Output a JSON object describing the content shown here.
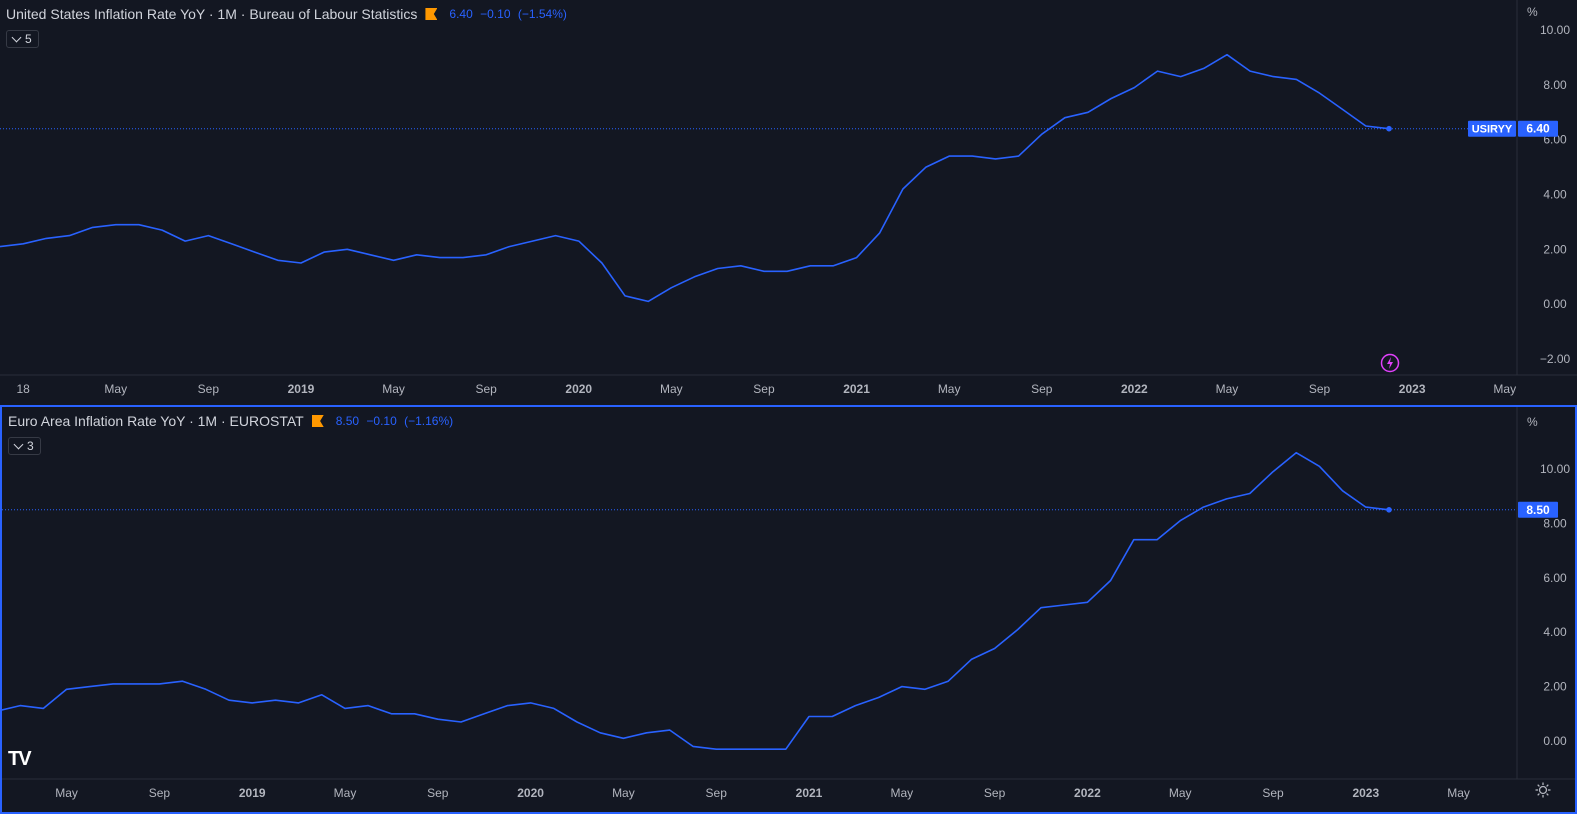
{
  "chart_data": [
    {
      "type": "line",
      "title": "United States Inflation Rate YoY · 1M · Bureau of Labour Statistics",
      "last_value": "6.40",
      "change": "−0.10",
      "change_pct": "(−1.54%)",
      "collapse_count": "5",
      "unit_label": "%",
      "symbol_tag": "USIRYY",
      "last_value_label": "6.40",
      "ylim": [
        -2.6,
        10.6
      ],
      "yticks": [
        "10.00",
        "8.00",
        "6.00",
        "4.00",
        "2.00",
        "0.00",
        "−2.00"
      ],
      "ytick_values": [
        10,
        8,
        6,
        4,
        2,
        0,
        -2
      ],
      "xticks": [
        "18",
        "May",
        "Sep",
        "2019",
        "May",
        "Sep",
        "2020",
        "May",
        "Sep",
        "2021",
        "May",
        "Sep",
        "2022",
        "May",
        "Sep",
        "2023",
        "May"
      ],
      "xtick_months": [
        0,
        4,
        8,
        12,
        16,
        20,
        24,
        28,
        32,
        36,
        40,
        44,
        48,
        52,
        56,
        60,
        64
      ],
      "series": [
        {
          "x_start": "2017-12",
          "values": [
            2.1,
            2.2,
            2.4,
            2.5,
            2.8,
            2.9,
            2.9,
            2.7,
            2.3,
            2.5,
            2.2,
            1.9,
            1.6,
            1.5,
            1.9,
            2.0,
            1.8,
            1.6,
            1.8,
            1.7,
            1.7,
            1.8,
            2.1,
            2.3,
            2.5,
            2.3,
            1.5,
            0.3,
            0.1,
            0.6,
            1.0,
            1.3,
            1.4,
            1.2,
            1.2,
            1.4,
            1.4,
            1.7,
            2.6,
            4.2,
            5.0,
            5.4,
            5.4,
            5.3,
            5.4,
            6.2,
            6.8,
            7.0,
            7.5,
            7.9,
            8.5,
            8.3,
            8.6,
            9.1,
            8.5,
            8.3,
            8.2,
            7.7,
            7.1,
            6.5,
            6.4
          ]
        }
      ],
      "color": "#2962ff"
    },
    {
      "type": "line",
      "title": "Euro Area Inflation Rate YoY · 1M · EUROSTAT",
      "last_value": "8.50",
      "change": "−0.10",
      "change_pct": "(−1.16%)",
      "collapse_count": "3",
      "unit_label": "%",
      "last_value_label": "8.50",
      "ylim": [
        -1.3,
        12.2
      ],
      "yticks": [
        "10.00",
        "8.00",
        "6.00",
        "4.00",
        "2.00",
        "0.00"
      ],
      "ytick_values": [
        10,
        8,
        6,
        4,
        2,
        0
      ],
      "xticks": [
        "May",
        "Sep",
        "2019",
        "May",
        "Sep",
        "2020",
        "May",
        "Sep",
        "2021",
        "May",
        "Sep",
        "2022",
        "May",
        "Sep",
        "2023",
        "May"
      ],
      "xtick_months": [
        4,
        8,
        12,
        16,
        20,
        24,
        28,
        32,
        36,
        40,
        44,
        48,
        52,
        56,
        60,
        64
      ],
      "series": [
        {
          "x_start": "2018-01",
          "values": [
            1.3,
            1.1,
            1.3,
            1.2,
            1.9,
            2.0,
            2.1,
            2.1,
            2.1,
            2.2,
            1.9,
            1.5,
            1.4,
            1.5,
            1.4,
            1.7,
            1.2,
            1.3,
            1.0,
            1.0,
            0.8,
            0.7,
            1.0,
            1.3,
            1.4,
            1.2,
            0.7,
            0.3,
            0.1,
            0.3,
            0.4,
            -0.2,
            -0.3,
            -0.3,
            -0.3,
            -0.3,
            0.9,
            0.9,
            1.3,
            1.6,
            2.0,
            1.9,
            2.2,
            3.0,
            3.4,
            4.1,
            4.9,
            5.0,
            5.1,
            5.9,
            7.4,
            7.4,
            8.1,
            8.6,
            8.9,
            9.1,
            9.9,
            10.6,
            10.1,
            9.2,
            8.6,
            8.5
          ]
        }
      ],
      "color": "#2962ff"
    }
  ],
  "icons": {
    "logo": "TV",
    "bolt": "lightning-icon",
    "gear": "settings-icon"
  },
  "colors": {
    "background": "#131722",
    "line": "#2962ff",
    "flag": "#ff9800",
    "text": "#d1d4dc"
  }
}
